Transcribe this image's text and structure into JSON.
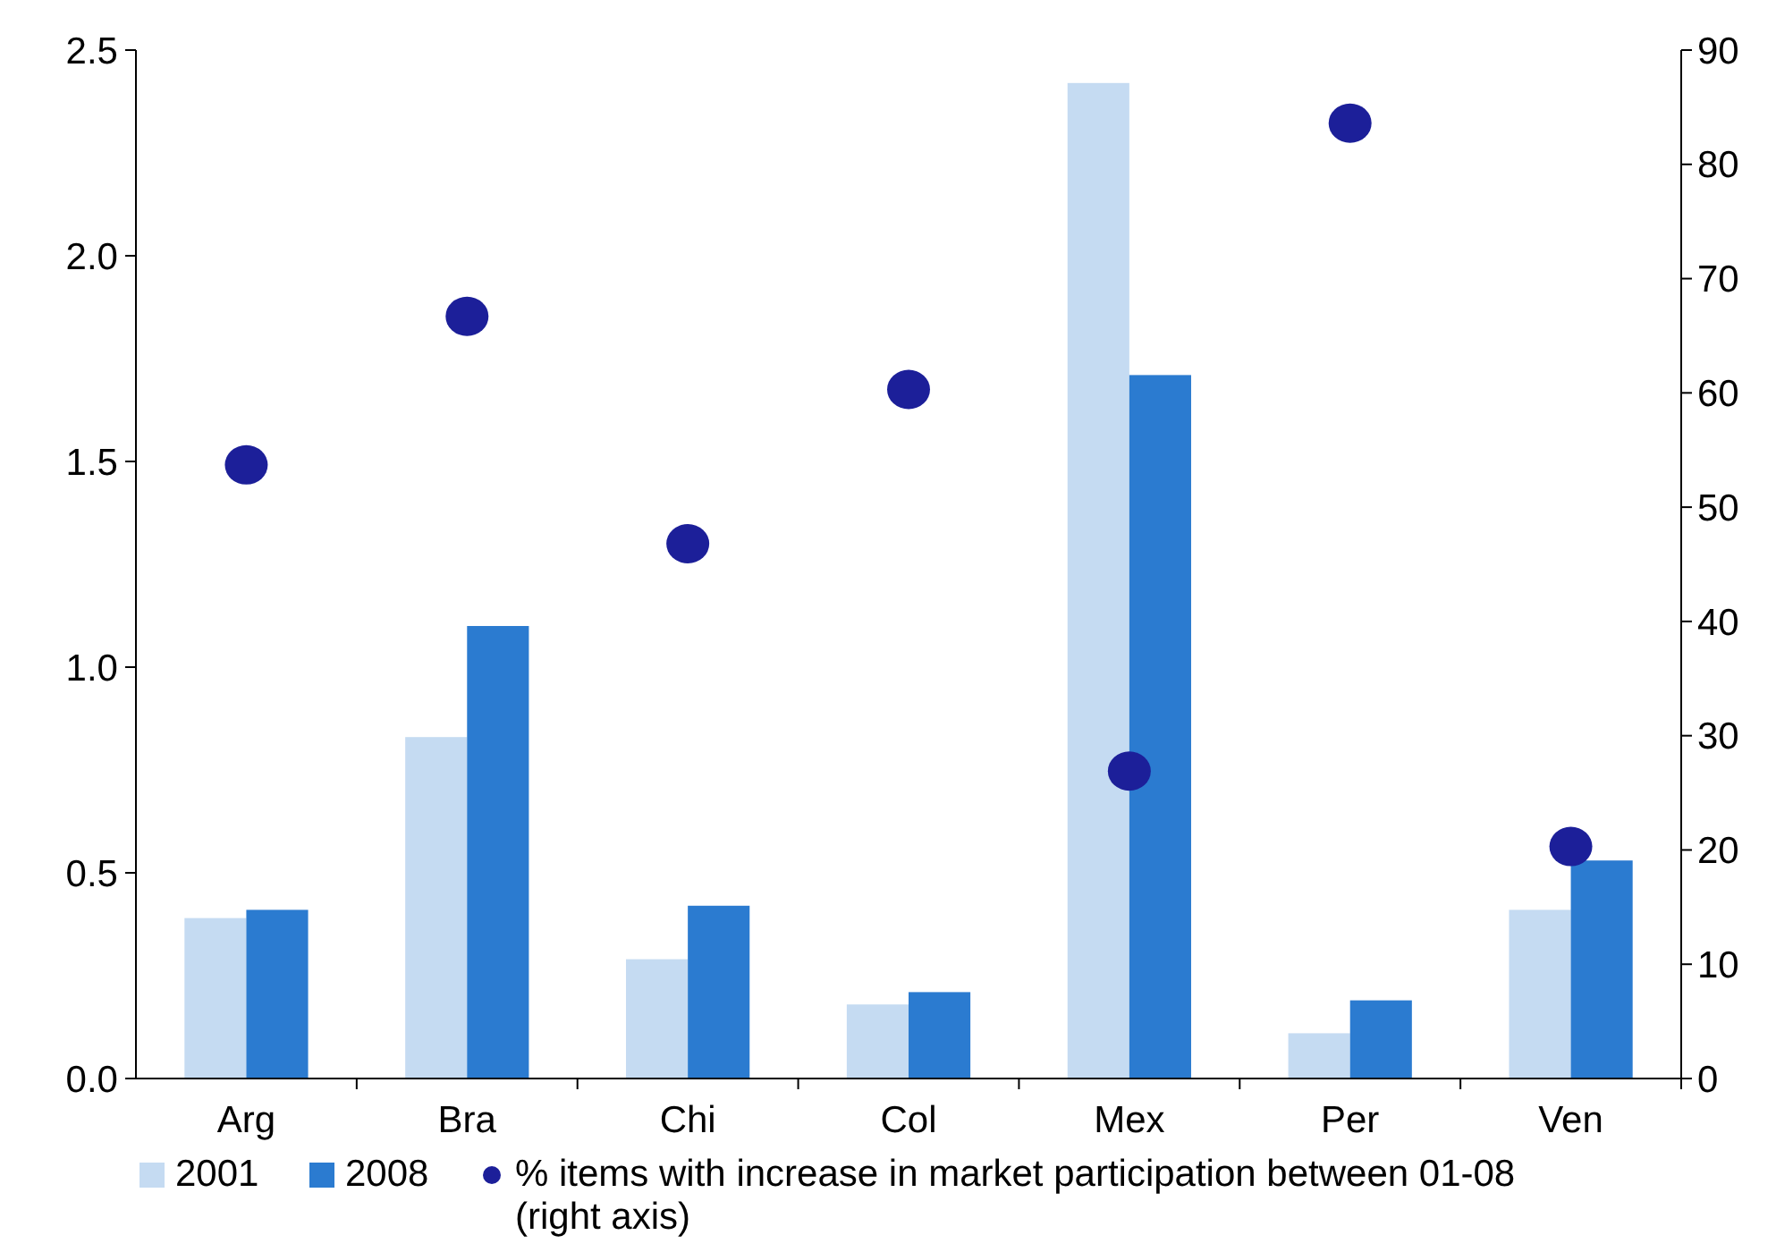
{
  "chart_data": {
    "type": "bar",
    "categories": [
      "Arg",
      "Bra",
      "Chi",
      "Col",
      "Mex",
      "Per",
      "Ven"
    ],
    "series": [
      {
        "name": "2001",
        "color": "#c5dbf2",
        "values": [
          0.39,
          0.83,
          0.29,
          0.18,
          2.42,
          0.11,
          0.41
        ]
      },
      {
        "name": "2008",
        "color": "#2b7bd0",
        "values": [
          0.41,
          1.1,
          0.42,
          0.21,
          1.71,
          0.19,
          0.53
        ]
      },
      {
        "name": "% items with increase in market participation between 01-08 (right axis)",
        "type": "scatter",
        "axis": "y2",
        "color": "#1c1f99",
        "x": [
          "Arg",
          "Bra",
          "Chi",
          "Col",
          "Mex",
          "Per",
          "Ven"
        ],
        "values": [
          53.7,
          66.7,
          46.8,
          60.3,
          26.9,
          83.6,
          20.3
        ]
      }
    ],
    "ylim": [
      0,
      2.5
    ],
    "yticks": [
      {
        "value": 0,
        "label": "0.0"
      },
      0.5,
      {
        "value": 1,
        "label": "1.0"
      },
      1.5,
      {
        "value": 2,
        "label": "2.0"
      },
      2.5
    ],
    "y2lim": [
      0,
      90
    ],
    "y2ticks": [
      0,
      10,
      20,
      30,
      40,
      50,
      60,
      70,
      80,
      90
    ],
    "marker": "circle",
    "grid": false,
    "legend": "bottom"
  }
}
